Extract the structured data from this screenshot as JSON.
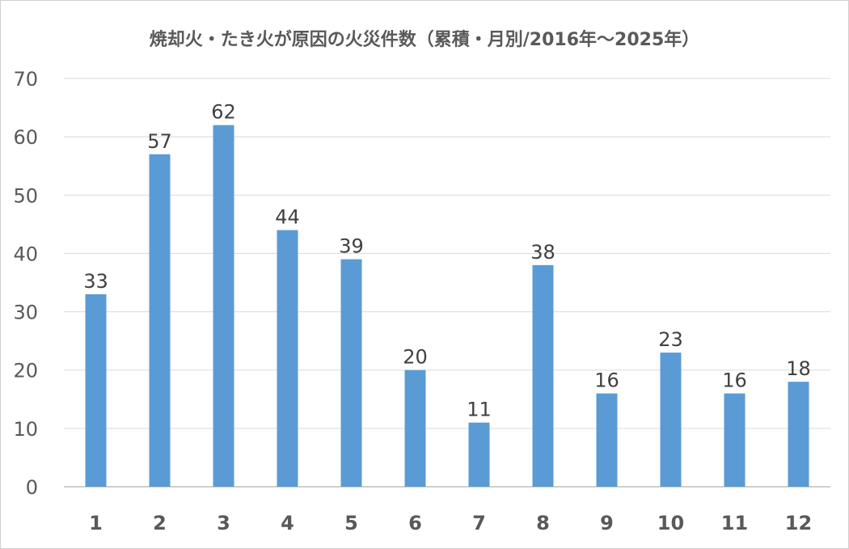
{
  "chart_data": {
    "type": "bar",
    "title": "焼却火・たき火が原因の火災件数（累積・月別/2016年～2025年）",
    "xlabel": "",
    "ylabel": "",
    "categories": [
      "1",
      "2",
      "3",
      "4",
      "5",
      "6",
      "7",
      "8",
      "9",
      "10",
      "11",
      "12"
    ],
    "values": [
      33,
      57,
      62,
      44,
      39,
      20,
      11,
      38,
      16,
      23,
      16,
      18
    ],
    "ylim": [
      0,
      70
    ],
    "yticks": [
      0,
      10,
      20,
      30,
      40,
      50,
      60,
      70
    ],
    "grid": true,
    "legend": "none",
    "bar_color": "#5B9BD5"
  }
}
